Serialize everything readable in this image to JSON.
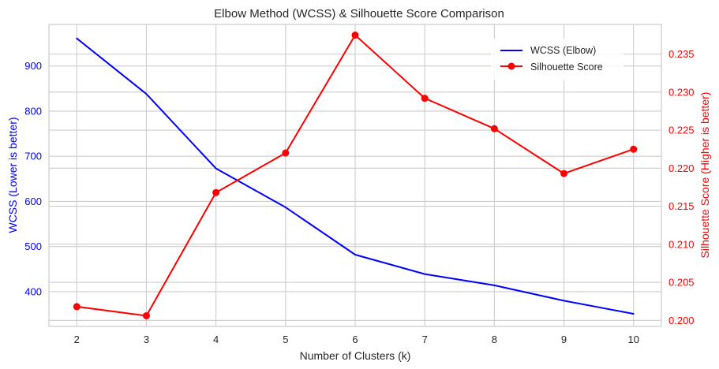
{
  "chart_data": {
    "type": "line",
    "title": "Elbow Method (WCSS) & Silhouette Score Comparison",
    "xlabel": "Number of Clusters (k)",
    "ylabel_left": "WCSS (Lower is better)",
    "ylabel_right": "Silhouette Score (Higher is better)",
    "x": [
      2,
      3,
      4,
      5,
      6,
      7,
      8,
      9,
      10
    ],
    "xlim": [
      1.6,
      10.4
    ],
    "ylim_left": [
      323,
      992
    ],
    "ylim_right": [
      0.1992,
      0.2389
    ],
    "xticks": [
      2,
      3,
      4,
      5,
      6,
      7,
      8,
      9,
      10
    ],
    "yticks_left": [
      400,
      500,
      600,
      700,
      800,
      900
    ],
    "yticks_right": [
      "0.200",
      "0.205",
      "0.210",
      "0.215",
      "0.220",
      "0.225",
      "0.230",
      "0.235"
    ],
    "grid": true,
    "legend_position": "upper right",
    "series": [
      {
        "name": "WCSS (Elbow)",
        "axis": "left",
        "color": "#0000ff",
        "marker": "none",
        "values": [
          961,
          838,
          673,
          587,
          482,
          439,
          414,
          380,
          351
        ]
      },
      {
        "name": "Silhouette Score",
        "axis": "right",
        "color": "#ff0000",
        "marker": "circle",
        "values": [
          0.2018,
          0.2006,
          0.2168,
          0.222,
          0.2375,
          0.2292,
          0.2252,
          0.2193,
          0.2225
        ]
      }
    ],
    "colors": {
      "left_axis": "#0000ff",
      "right_axis": "#ff0000",
      "grid": "#cccccc",
      "text": "#262626"
    }
  }
}
